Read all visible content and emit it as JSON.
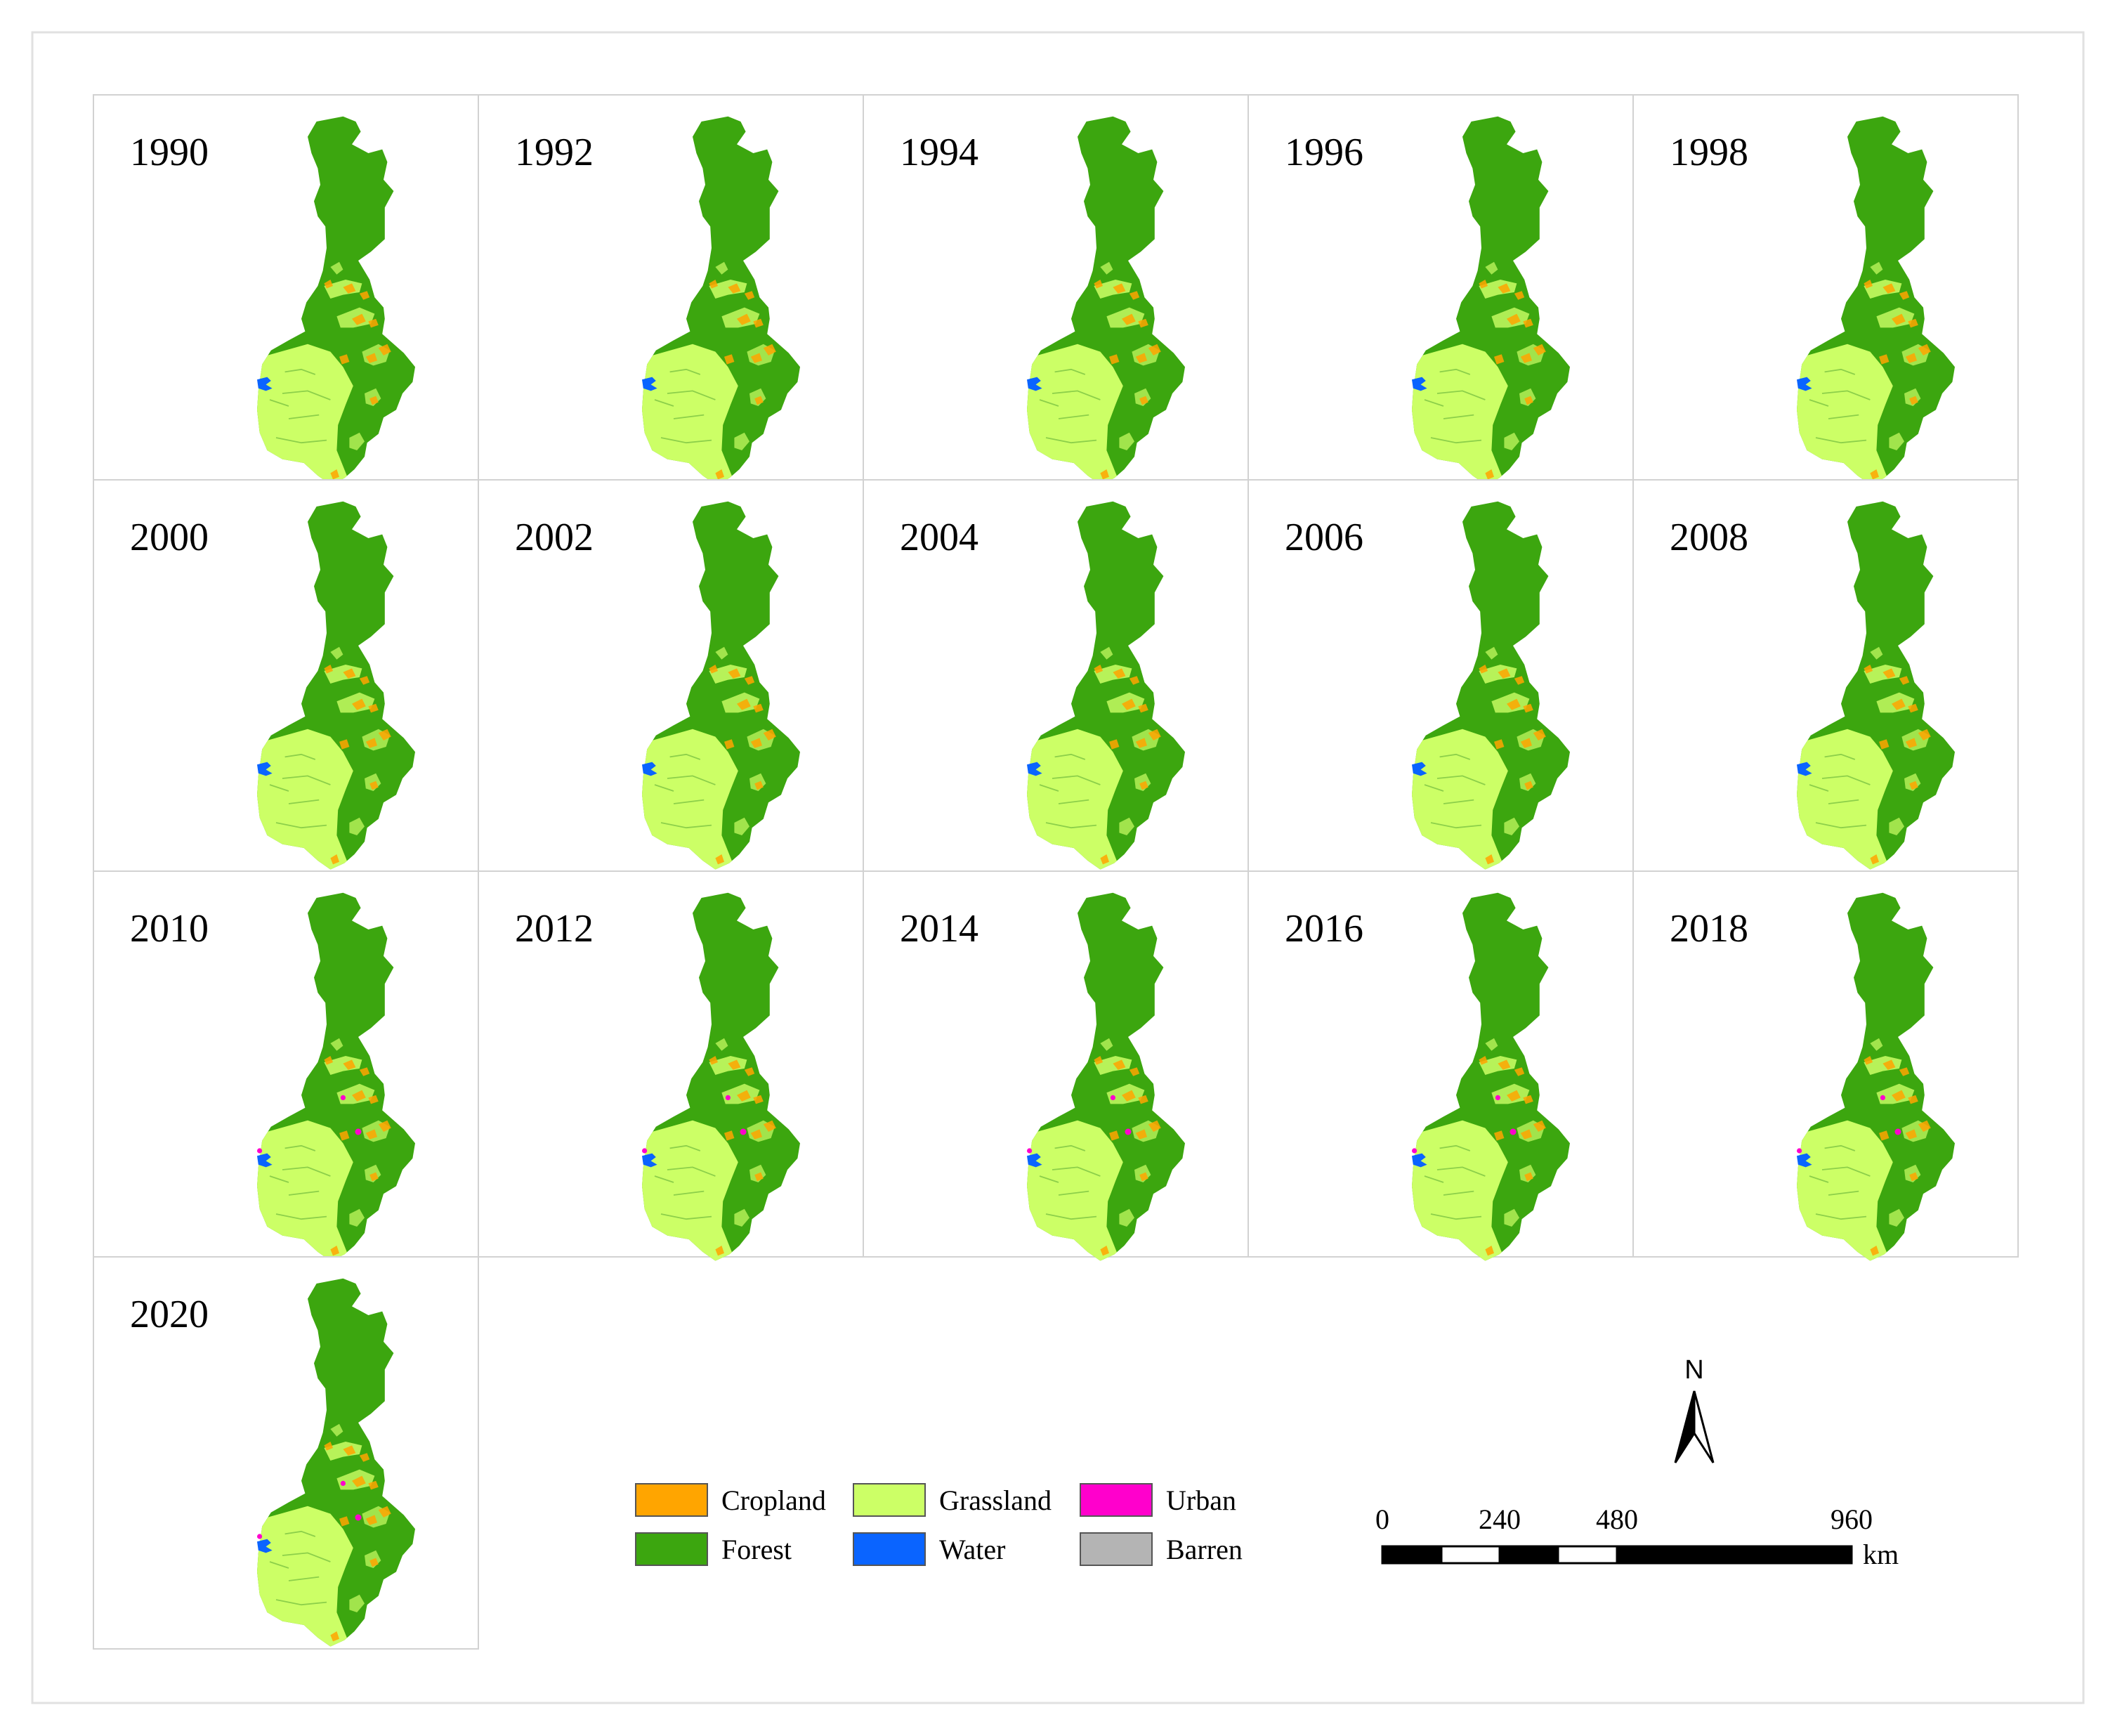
{
  "figure": {
    "panels": [
      {
        "year": "1990",
        "urban": 0
      },
      {
        "year": "1992",
        "urban": 0
      },
      {
        "year": "1994",
        "urban": 0
      },
      {
        "year": "1996",
        "urban": 0
      },
      {
        "year": "1998",
        "urban": 0
      },
      {
        "year": "2000",
        "urban": 0
      },
      {
        "year": "2002",
        "urban": 0
      },
      {
        "year": "2004",
        "urban": 0
      },
      {
        "year": "2006",
        "urban": 0
      },
      {
        "year": "2008",
        "urban": 0
      },
      {
        "year": "2010",
        "urban": 1
      },
      {
        "year": "2012",
        "urban": 1
      },
      {
        "year": "2014",
        "urban": 1
      },
      {
        "year": "2016",
        "urban": 1
      },
      {
        "year": "2018",
        "urban": 1
      },
      {
        "year": "2020",
        "urban": 1
      }
    ],
    "legend": [
      {
        "label": "Cropland",
        "color": "#FFA500"
      },
      {
        "label": "Grassland",
        "color": "#CCFF66"
      },
      {
        "label": "Urban",
        "color": "#FF00CC"
      },
      {
        "label": "Forest",
        "color": "#3CA60F"
      },
      {
        "label": "Water",
        "color": "#0A64FF"
      },
      {
        "label": "Barren",
        "color": "#B4B4B4"
      }
    ],
    "north_arrow": {
      "label": "N"
    },
    "scale_bar": {
      "ticks": [
        "0",
        "240",
        "480",
        "960"
      ],
      "unit": "km"
    }
  }
}
